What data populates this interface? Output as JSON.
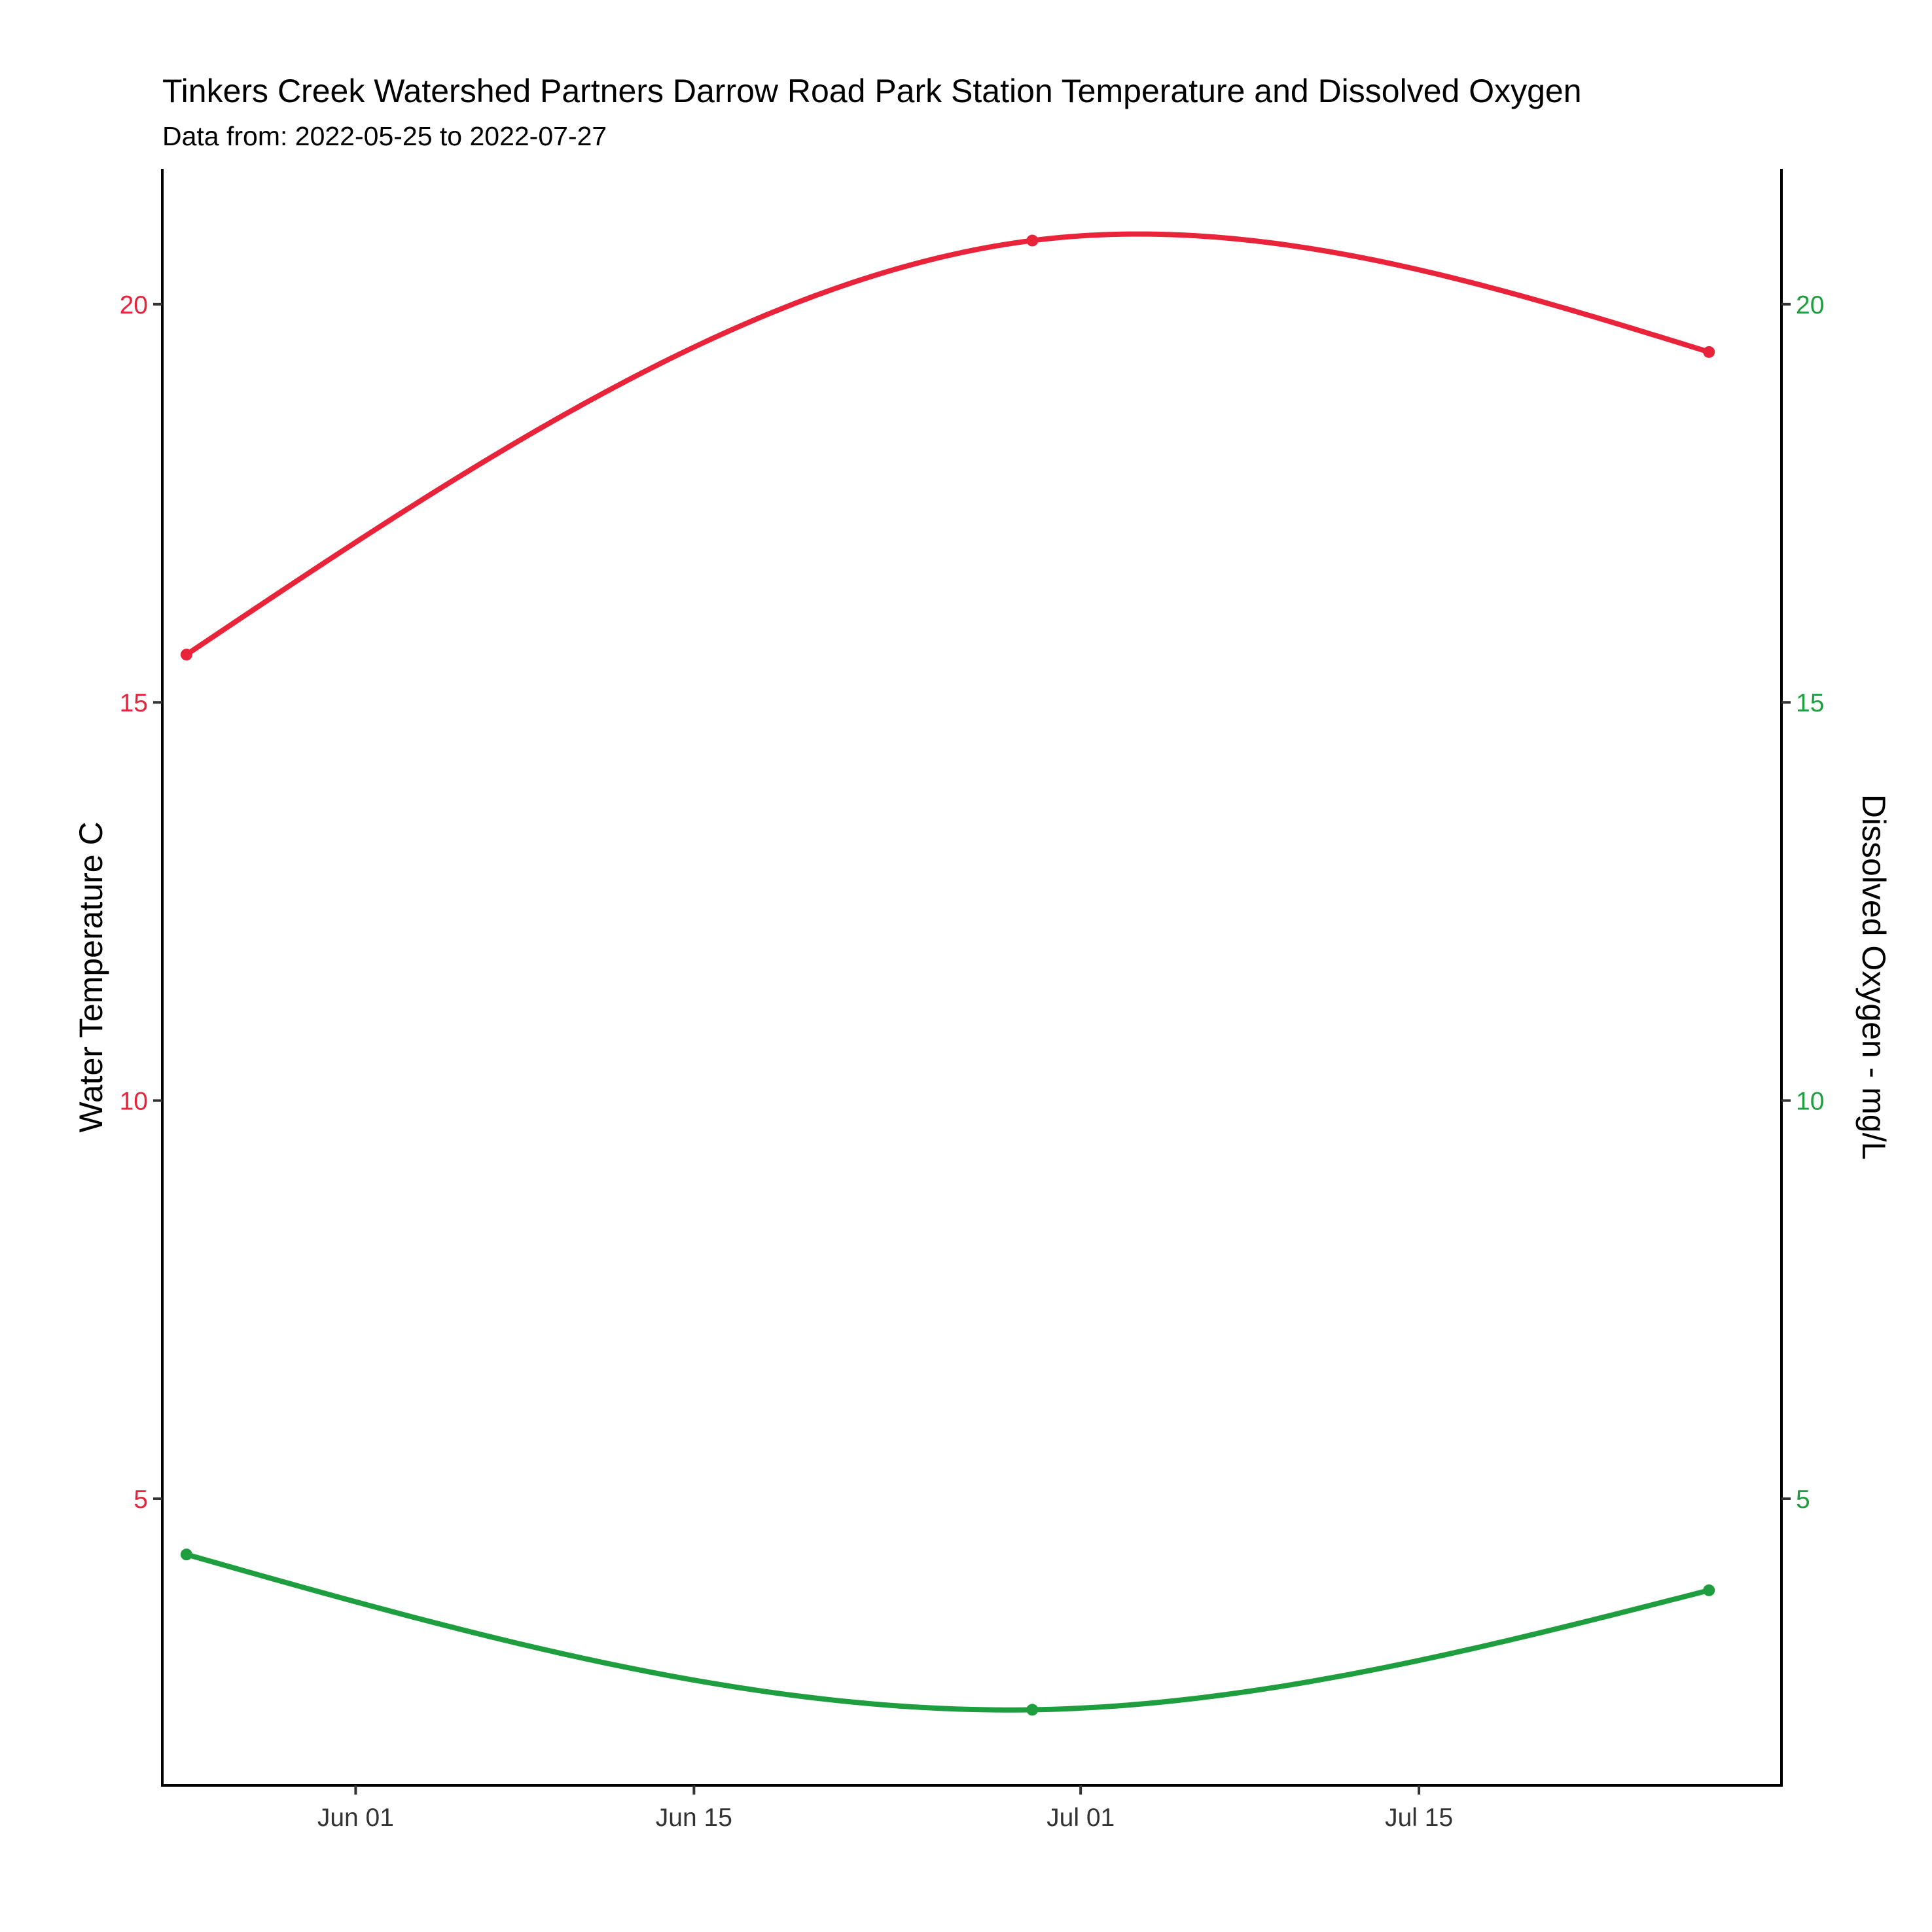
{
  "chart_data": {
    "type": "line",
    "title": "Tinkers Creek Watershed Partners Darrow Road Park Station Temperature and Dissolved Oxygen",
    "subtitle": "Data from: 2022-05-25 to 2022-07-27",
    "x_axis": {
      "type": "date",
      "range": [
        "2022-05-24",
        "2022-07-30"
      ],
      "ticks": [
        {
          "value": "2022-06-01",
          "label": "Jun 01"
        },
        {
          "value": "2022-06-15",
          "label": "Jun 15"
        },
        {
          "value": "2022-07-01",
          "label": "Jul 01"
        },
        {
          "value": "2022-07-15",
          "label": "Jul 15"
        }
      ]
    },
    "y_left": {
      "label": "Water Temperature C",
      "color": "#e8233a",
      "ylim": [
        1.4,
        21.7
      ],
      "ticks": [
        5,
        10,
        15,
        20
      ]
    },
    "y_right": {
      "label": "Dissolved Oxygen - mg/L",
      "color": "#1e9e3e",
      "ylim": [
        1.4,
        21.7
      ],
      "ticks": [
        5,
        10,
        15,
        20
      ]
    },
    "series": [
      {
        "axis": "left",
        "color": "#e8233a",
        "x": [
          "2022-05-25",
          "2022-06-29",
          "2022-07-27"
        ],
        "y": [
          15.6,
          20.8,
          19.4
        ]
      },
      {
        "axis": "right",
        "color": "#1e9e3e",
        "x": [
          "2022-05-25",
          "2022-06-29",
          "2022-07-27"
        ],
        "y": [
          4.3,
          2.35,
          3.85
        ]
      }
    ],
    "smoothed": true,
    "markers": true,
    "grid": false,
    "legend": "none"
  }
}
